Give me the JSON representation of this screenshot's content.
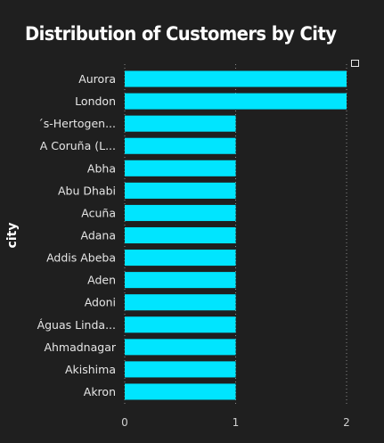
{
  "chart_data": {
    "type": "bar",
    "orientation": "horizontal",
    "title": "Distribution of Customers by City",
    "xlabel": "",
    "ylabel": "city",
    "categories": [
      "Aurora",
      "London",
      "´s-Hertogen...",
      "A Coruña (L...",
      "Abha",
      "Abu Dhabi",
      "Acuña",
      "Adana",
      "Addis Abeba",
      "Aden",
      "Adoni",
      "Águas Linda...",
      "Ahmadnagar",
      "Akishima",
      "Akron"
    ],
    "values": [
      2,
      2,
      1,
      1,
      1,
      1,
      1,
      1,
      1,
      1,
      1,
      1,
      1,
      1,
      1
    ],
    "xlim": [
      0,
      2
    ],
    "xticks": [
      "0",
      "1",
      "2"
    ],
    "grid": true,
    "bar_color": "#00e5ff",
    "background": "#1f1f1f"
  },
  "icons": {
    "focus_mode": "focus-mode-icon"
  }
}
